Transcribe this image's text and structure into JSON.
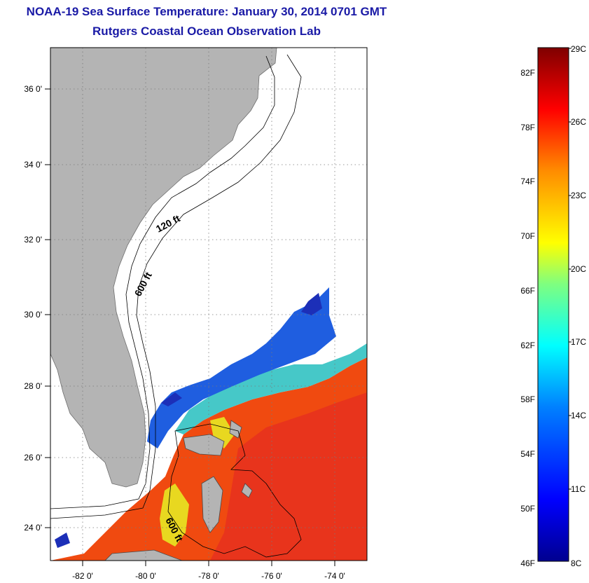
{
  "header": {
    "title_line1": "NOAA-19 Sea Surface Temperature:  January 30, 2014 0701 GMT",
    "title_line2": "Rutgers Coastal Ocean Observation Lab"
  },
  "map": {
    "lon_labels": [
      "-82 0'",
      "-80 0'",
      "-78 0'",
      "-76 0'",
      "-74 0'"
    ],
    "lat_labels": [
      "36 0'",
      "34 0'",
      "32 0'",
      "30 0'",
      "28 0'",
      "26 0'",
      "24 0'"
    ],
    "contour_labels": [
      "120 ft",
      "600 ft",
      "600 ft"
    ],
    "land_color": "#b4b4b4"
  },
  "colorbar": {
    "left_labels": [
      "82F",
      "78F",
      "74F",
      "70F",
      "66F",
      "62F",
      "58F",
      "54F",
      "50F",
      "46F"
    ],
    "right_labels": [
      "29C",
      "26C",
      "23C",
      "20C",
      "17C",
      "14C",
      "11C",
      "8C"
    ],
    "colors": [
      "#7f0000",
      "#ff0000",
      "#ff8c00",
      "#ffff00",
      "#7fff7f",
      "#00ffff",
      "#0080ff",
      "#0000ff",
      "#00008f"
    ]
  }
}
